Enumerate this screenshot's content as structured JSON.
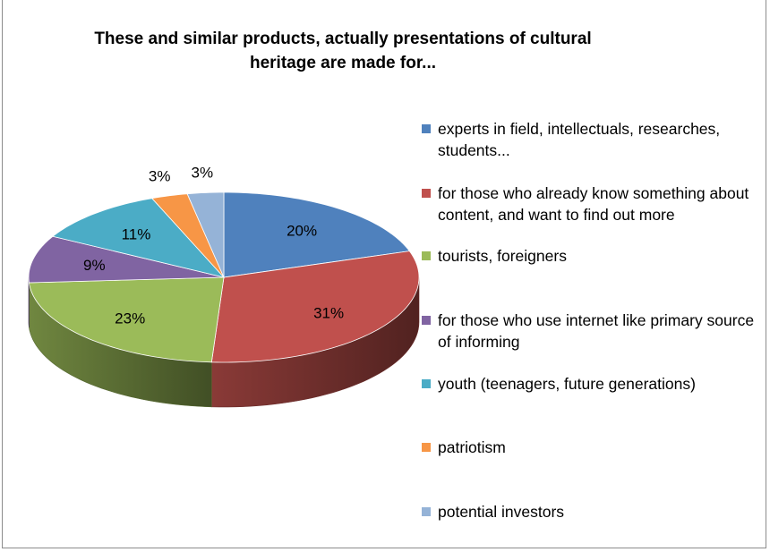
{
  "chart_data": {
    "type": "pie",
    "title": "These and similar products, actually presentations of cultural\nheritage are made for...",
    "legend_position": "right",
    "three_d": true,
    "slices": [
      {
        "label": "experts in field, intellectuals, researches, students...",
        "value": 20,
        "data_label": "20%",
        "color": "#4F81BD"
      },
      {
        "label": "for those who already know something about content, and want to find out more",
        "value": 31,
        "data_label": "31%",
        "color": "#C0504D"
      },
      {
        "label": "tourists, foreigners",
        "value": 23,
        "data_label": "23%",
        "color": "#9BBB59"
      },
      {
        "label": "for those who use internet like primary source of informing",
        "value": 9,
        "data_label": "9%",
        "color": "#8064A2"
      },
      {
        "label": "youth (teenagers, future generations)",
        "value": 11,
        "data_label": "11%",
        "color": "#4BACC6"
      },
      {
        "label": "patriotism",
        "value": 3,
        "data_label": "3%",
        "color": "#F79646"
      },
      {
        "label": "potential investors",
        "value": 3,
        "data_label": "3%",
        "color": "#95B3D7"
      }
    ]
  }
}
